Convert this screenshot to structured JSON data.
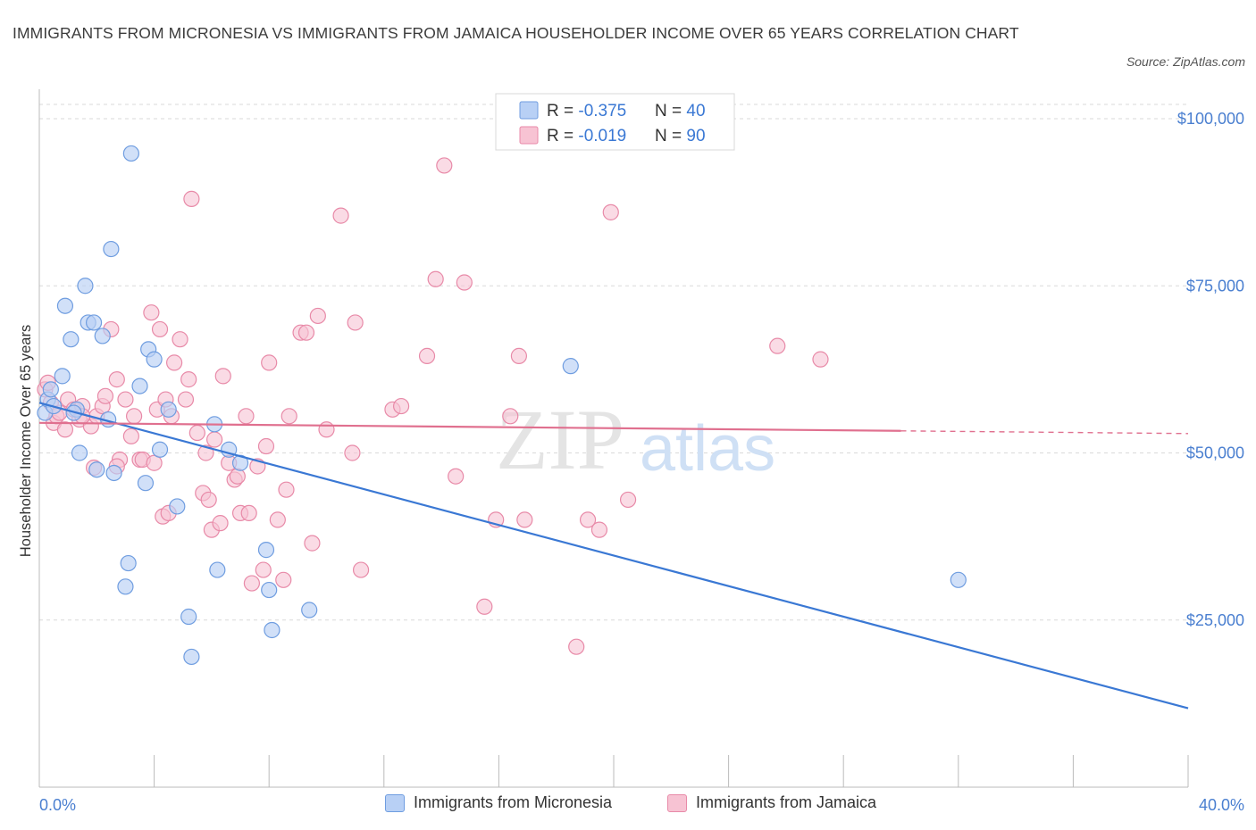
{
  "title": "IMMIGRANTS FROM MICRONESIA VS IMMIGRANTS FROM JAMAICA HOUSEHOLDER INCOME OVER 65 YEARS CORRELATION CHART",
  "source": "Source: ZipAtlas.com",
  "watermark": {
    "zip": "ZIP",
    "atlas": "atlas"
  },
  "colors": {
    "micronesia_fill": "#b8d0f5",
    "micronesia_stroke": "#6f9de0",
    "micronesia_line": "#3a78d4",
    "jamaica_fill": "#f7c3d3",
    "jamaica_stroke": "#e88aa8",
    "jamaica_line": "#e0708f",
    "tick": "#4a7fd0",
    "grid": "#d9d9d9"
  },
  "legend": {
    "micronesia": {
      "r_label": "R = ",
      "r_value": "-0.375",
      "n_label": "N = ",
      "n_value": "40"
    },
    "jamaica": {
      "r_label": "R = ",
      "r_value": "-0.019",
      "n_label": "N = ",
      "n_value": "90"
    }
  },
  "bottom_legend": {
    "micronesia": "Immigrants from Micronesia",
    "jamaica": "Immigrants from Jamaica"
  },
  "chart_data": {
    "type": "scatter",
    "title": "IMMIGRANTS FROM MICRONESIA VS IMMIGRANTS FROM JAMAICA HOUSEHOLDER INCOME OVER 65 YEARS CORRELATION CHART",
    "xlabel": "",
    "ylabel": "Householder Income Over 65 years",
    "xlim": [
      0,
      40
    ],
    "ylim": [
      0,
      104000
    ],
    "x_tick_labels": [
      "0.0%",
      "40.0%"
    ],
    "y_ticks": [
      25000,
      50000,
      75000,
      100000
    ],
    "y_tick_labels": [
      "$25,000",
      "$50,000",
      "$75,000",
      "$100,000"
    ],
    "grid": "horizontal dashed",
    "legend_position": "top-center",
    "series": [
      {
        "name": "Immigrants from Micronesia",
        "R": -0.375,
        "N": 40,
        "trend": {
          "x": [
            0,
            40
          ],
          "y": [
            57500,
            11800
          ]
        },
        "points": [
          [
            0.2,
            56000
          ],
          [
            0.3,
            58000
          ],
          [
            0.4,
            59500
          ],
          [
            0.8,
            61500
          ],
          [
            0.9,
            72000
          ],
          [
            1.1,
            67000
          ],
          [
            1.3,
            56500
          ],
          [
            1.4,
            50000
          ],
          [
            1.6,
            75000
          ],
          [
            1.7,
            69500
          ],
          [
            1.9,
            69500
          ],
          [
            2.0,
            47500
          ],
          [
            2.2,
            67500
          ],
          [
            2.4,
            55000
          ],
          [
            2.5,
            80500
          ],
          [
            2.6,
            47000
          ],
          [
            3.0,
            30000
          ],
          [
            3.1,
            33500
          ],
          [
            3.2,
            94800
          ],
          [
            3.5,
            60000
          ],
          [
            3.7,
            45500
          ],
          [
            3.8,
            65500
          ],
          [
            4.0,
            64000
          ],
          [
            4.2,
            50500
          ],
          [
            4.5,
            56500
          ],
          [
            4.8,
            42000
          ],
          [
            5.2,
            25500
          ],
          [
            5.3,
            19500
          ],
          [
            6.1,
            54300
          ],
          [
            6.2,
            32500
          ],
          [
            6.6,
            50500
          ],
          [
            7.0,
            48500
          ],
          [
            7.9,
            35500
          ],
          [
            8.0,
            29500
          ],
          [
            8.1,
            23500
          ],
          [
            9.4,
            26500
          ],
          [
            18.5,
            63000
          ],
          [
            32.0,
            31000
          ],
          [
            0.5,
            57000
          ],
          [
            1.2,
            56000
          ]
        ]
      },
      {
        "name": "Immigrants from Jamaica",
        "R": -0.019,
        "N": 90,
        "trend": {
          "x": [
            0,
            30
          ],
          "y": [
            54500,
            53300
          ]
        },
        "trend_dashed": {
          "x": [
            30,
            40
          ],
          "y": [
            53300,
            52900
          ]
        },
        "points": [
          [
            0.2,
            59500
          ],
          [
            0.3,
            60500
          ],
          [
            0.4,
            57500
          ],
          [
            0.5,
            54500
          ],
          [
            0.6,
            55500
          ],
          [
            0.7,
            56000
          ],
          [
            0.9,
            53500
          ],
          [
            1.0,
            58000
          ],
          [
            1.2,
            56500
          ],
          [
            1.4,
            55000
          ],
          [
            1.5,
            57000
          ],
          [
            1.8,
            54000
          ],
          [
            1.9,
            47800
          ],
          [
            2.0,
            55500
          ],
          [
            2.2,
            57000
          ],
          [
            2.3,
            58500
          ],
          [
            2.5,
            68500
          ],
          [
            2.7,
            61000
          ],
          [
            2.8,
            49000
          ],
          [
            3.0,
            58000
          ],
          [
            3.2,
            52500
          ],
          [
            3.3,
            55500
          ],
          [
            3.5,
            49000
          ],
          [
            3.6,
            49000
          ],
          [
            3.9,
            71000
          ],
          [
            4.1,
            56500
          ],
          [
            4.2,
            68500
          ],
          [
            4.3,
            40500
          ],
          [
            4.4,
            58000
          ],
          [
            4.5,
            41000
          ],
          [
            4.6,
            55500
          ],
          [
            4.7,
            63500
          ],
          [
            4.9,
            67000
          ],
          [
            5.1,
            58000
          ],
          [
            5.2,
            61000
          ],
          [
            5.3,
            88000
          ],
          [
            5.5,
            53000
          ],
          [
            5.7,
            44000
          ],
          [
            5.8,
            50000
          ],
          [
            5.9,
            43000
          ],
          [
            6.0,
            38500
          ],
          [
            6.1,
            52000
          ],
          [
            6.3,
            39500
          ],
          [
            6.4,
            61500
          ],
          [
            6.6,
            48500
          ],
          [
            6.8,
            46000
          ],
          [
            6.9,
            46500
          ],
          [
            7.0,
            41000
          ],
          [
            7.2,
            55500
          ],
          [
            7.3,
            41000
          ],
          [
            7.4,
            30500
          ],
          [
            7.6,
            48000
          ],
          [
            7.8,
            32500
          ],
          [
            7.9,
            51000
          ],
          [
            8.0,
            63500
          ],
          [
            8.3,
            40000
          ],
          [
            8.5,
            31000
          ],
          [
            8.6,
            44500
          ],
          [
            8.7,
            55500
          ],
          [
            9.1,
            68000
          ],
          [
            9.3,
            68000
          ],
          [
            9.5,
            36500
          ],
          [
            9.7,
            70500
          ],
          [
            10.0,
            53500
          ],
          [
            10.5,
            85500
          ],
          [
            10.9,
            50000
          ],
          [
            11.0,
            69500
          ],
          [
            11.2,
            32500
          ],
          [
            12.3,
            56500
          ],
          [
            12.6,
            57000
          ],
          [
            13.5,
            64500
          ],
          [
            13.8,
            76000
          ],
          [
            14.1,
            93000
          ],
          [
            14.5,
            46500
          ],
          [
            14.8,
            75500
          ],
          [
            15.5,
            27000
          ],
          [
            15.9,
            40000
          ],
          [
            16.4,
            55500
          ],
          [
            16.9,
            40000
          ],
          [
            16.7,
            64500
          ],
          [
            18.7,
            21000
          ],
          [
            19.1,
            40000
          ],
          [
            19.5,
            38500
          ],
          [
            19.9,
            86000
          ],
          [
            20.5,
            43000
          ],
          [
            25.7,
            66000
          ],
          [
            27.2,
            64000
          ],
          [
            1.5,
            55500
          ],
          [
            2.7,
            48000
          ],
          [
            4.0,
            48500
          ]
        ]
      }
    ]
  }
}
